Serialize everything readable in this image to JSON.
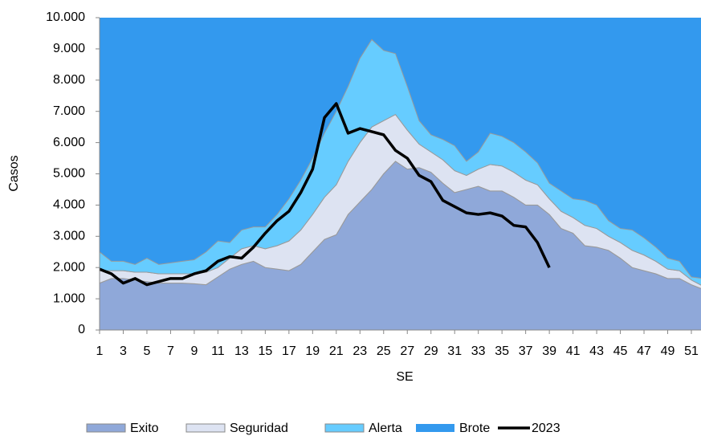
{
  "chart_data": {
    "type": "stacked-area-line",
    "y_label": "Casos",
    "x_label": "SE",
    "x": [
      1,
      2,
      3,
      4,
      5,
      6,
      7,
      8,
      9,
      10,
      11,
      12,
      13,
      14,
      15,
      16,
      17,
      18,
      19,
      20,
      21,
      22,
      23,
      24,
      25,
      26,
      27,
      28,
      29,
      30,
      31,
      32,
      33,
      34,
      35,
      36,
      37,
      38,
      39,
      40,
      41,
      42,
      43,
      44,
      45,
      46,
      47,
      48,
      49,
      50,
      51,
      52
    ],
    "xlim": [
      1,
      52
    ],
    "xticks": [
      1,
      3,
      5,
      7,
      9,
      11,
      13,
      15,
      17,
      19,
      21,
      23,
      25,
      27,
      29,
      31,
      33,
      35,
      37,
      39,
      41,
      43,
      45,
      47,
      49,
      51
    ],
    "ylim": [
      0,
      10000
    ],
    "yticks": [
      0,
      {
        "value": 1000,
        "label": "1.000"
      },
      {
        "value": 2000,
        "label": "2.000"
      },
      {
        "value": 3000,
        "label": "3.000"
      },
      {
        "value": 4000,
        "label": "4.000"
      },
      {
        "value": 5000,
        "label": "5.000"
      },
      {
        "value": 6000,
        "label": "6.000"
      },
      {
        "value": 7000,
        "label": "7.000"
      },
      {
        "value": 8000,
        "label": "8.000"
      },
      {
        "value": 9000,
        "label": "9.000"
      },
      {
        "value": 10000,
        "label": "10.000"
      }
    ],
    "legend": "bottom",
    "background_series": {
      "name": "Brote",
      "color": "#3399ee"
    },
    "series": [
      {
        "name": "Exito",
        "color": "#8fa8d9",
        "stack": true,
        "values": [
          1500,
          1650,
          1650,
          1600,
          1550,
          1500,
          1500,
          1500,
          1480,
          1450,
          1700,
          1950,
          2100,
          2200,
          2000,
          1950,
          1900,
          2100,
          2500,
          2900,
          3050,
          3700,
          4100,
          4500,
          5000,
          5400,
          5150,
          5200,
          5050,
          4700,
          4400,
          4500,
          4600,
          4450,
          4450,
          4250,
          4000,
          4000,
          3700,
          3250,
          3100,
          2700,
          2650,
          2550,
          2300,
          2000,
          1900,
          1800,
          1650,
          1650,
          1450,
          1300
        ]
      },
      {
        "name": "Seguridad",
        "color": "#dde3f2",
        "stack": true,
        "values": [
          400,
          250,
          250,
          250,
          300,
          300,
          300,
          300,
          320,
          400,
          300,
          350,
          500,
          500,
          600,
          750,
          950,
          1100,
          1200,
          1350,
          1600,
          1700,
          1900,
          2000,
          1700,
          1500,
          1250,
          750,
          650,
          750,
          700,
          450,
          550,
          850,
          800,
          800,
          800,
          650,
          500,
          550,
          500,
          650,
          600,
          450,
          500,
          550,
          500,
          400,
          300,
          250,
          150,
          100
        ]
      },
      {
        "name": "Alerta",
        "color": "#66ccff",
        "stack": true,
        "values": [
          600,
          300,
          300,
          250,
          450,
          300,
          350,
          400,
          450,
          650,
          850,
          500,
          600,
          600,
          700,
          1000,
          1350,
          1600,
          1800,
          2050,
          2350,
          2400,
          2700,
          2800,
          2250,
          1950,
          1400,
          750,
          550,
          650,
          800,
          450,
          550,
          1000,
          950,
          950,
          900,
          700,
          500,
          650,
          600,
          800,
          750,
          500,
          450,
          650,
          550,
          450,
          350,
          300,
          100,
          250
        ]
      },
      {
        "name": "2023",
        "color": "#000000",
        "stack": false,
        "values": [
          1950,
          1800,
          1500,
          1650,
          1450,
          1550,
          1650,
          1650,
          1800,
          1900,
          2200,
          2350,
          2300,
          2650,
          3100,
          3500,
          3800,
          4400,
          5150,
          6800,
          7250,
          6300,
          6450,
          6350,
          6250,
          5750,
          5500,
          4950,
          4750,
          4150,
          3950,
          3750,
          3700,
          3750,
          3650,
          3350,
          3300,
          2800,
          2000,
          null,
          null,
          null,
          null,
          null,
          null,
          null,
          null,
          null,
          null,
          null,
          null,
          null
        ]
      }
    ]
  }
}
